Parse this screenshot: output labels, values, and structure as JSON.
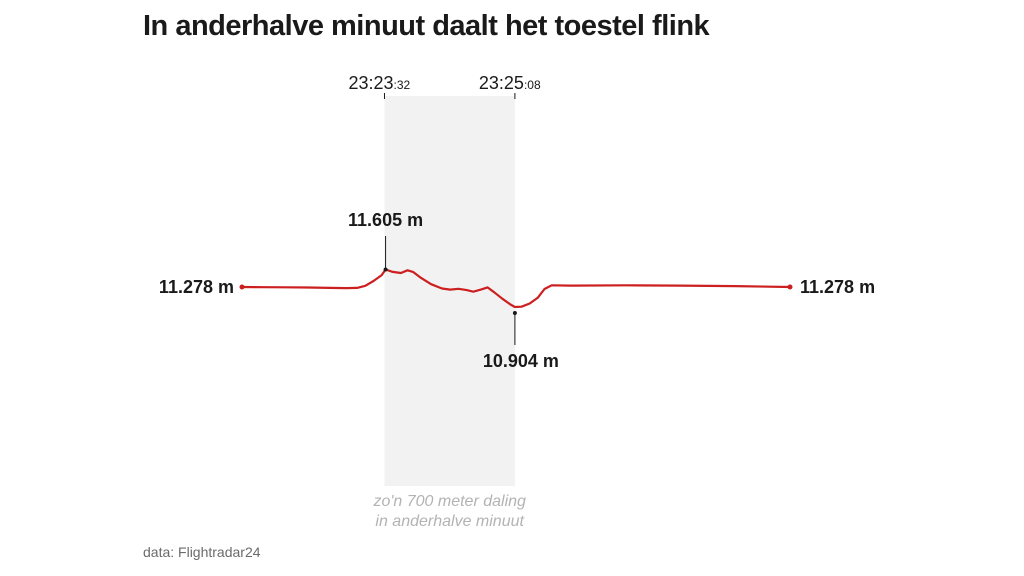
{
  "title": "In anderhalve minuut daalt het toestel flink",
  "source": "data: Flightradar24",
  "chart_data": {
    "type": "line",
    "title": "In anderhalve minuut daalt het toestel flink",
    "xlabel": "",
    "ylabel": "",
    "unit": "m",
    "color": "#cc1f1f",
    "highlight": {
      "start_label_main": "23:23",
      "start_label_sec": ":32",
      "end_label_main": "23:25",
      "end_label_sec": ":08",
      "start_x": 0.26,
      "end_x": 0.498,
      "note_line1": "zo'n 700 meter daling",
      "note_line2": "in anderhalve minuut"
    },
    "annotations": {
      "start": {
        "label": "11.278 m"
      },
      "peak": {
        "label": "11.605 m"
      },
      "trough": {
        "label": "10.904 m"
      },
      "end": {
        "label": "11.278 m"
      }
    },
    "series": [
      {
        "values": [
          [
            0.0,
            11278
          ],
          [
            0.04,
            11275
          ],
          [
            0.08,
            11272
          ],
          [
            0.12,
            11268
          ],
          [
            0.16,
            11262
          ],
          [
            0.19,
            11257
          ],
          [
            0.21,
            11262
          ],
          [
            0.225,
            11300
          ],
          [
            0.24,
            11390
          ],
          [
            0.255,
            11500
          ],
          [
            0.262,
            11605
          ],
          [
            0.275,
            11560
          ],
          [
            0.29,
            11540
          ],
          [
            0.302,
            11590
          ],
          [
            0.312,
            11560
          ],
          [
            0.325,
            11460
          ],
          [
            0.345,
            11330
          ],
          [
            0.365,
            11250
          ],
          [
            0.38,
            11230
          ],
          [
            0.395,
            11245
          ],
          [
            0.41,
            11220
          ],
          [
            0.422,
            11190
          ],
          [
            0.436,
            11230
          ],
          [
            0.448,
            11270
          ],
          [
            0.46,
            11180
          ],
          [
            0.475,
            11060
          ],
          [
            0.49,
            10950
          ],
          [
            0.498,
            10904
          ],
          [
            0.51,
            10910
          ],
          [
            0.525,
            10970
          ],
          [
            0.54,
            11080
          ],
          [
            0.552,
            11240
          ],
          [
            0.565,
            11310
          ],
          [
            0.6,
            11305
          ],
          [
            0.7,
            11310
          ],
          [
            0.8,
            11305
          ],
          [
            0.9,
            11295
          ],
          [
            1.0,
            11278
          ]
        ]
      }
    ]
  }
}
